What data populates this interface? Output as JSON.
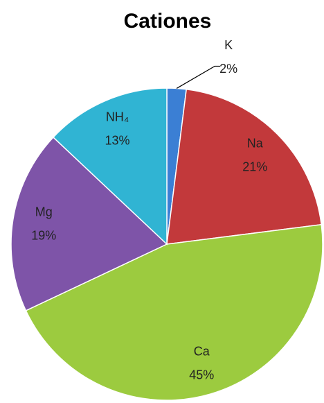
{
  "chart_data": {
    "type": "pie",
    "title": "Cationes",
    "categories": [
      "K",
      "Na",
      "Ca",
      "Mg",
      "NH₄"
    ],
    "values": [
      2,
      21,
      45,
      19,
      13
    ],
    "value_labels": [
      "2%",
      "21%",
      "45%",
      "19%",
      "13%"
    ],
    "colors": [
      "#3b7fd4",
      "#c2393b",
      "#9ccb3f",
      "#7e54a8",
      "#30b4d3"
    ]
  }
}
